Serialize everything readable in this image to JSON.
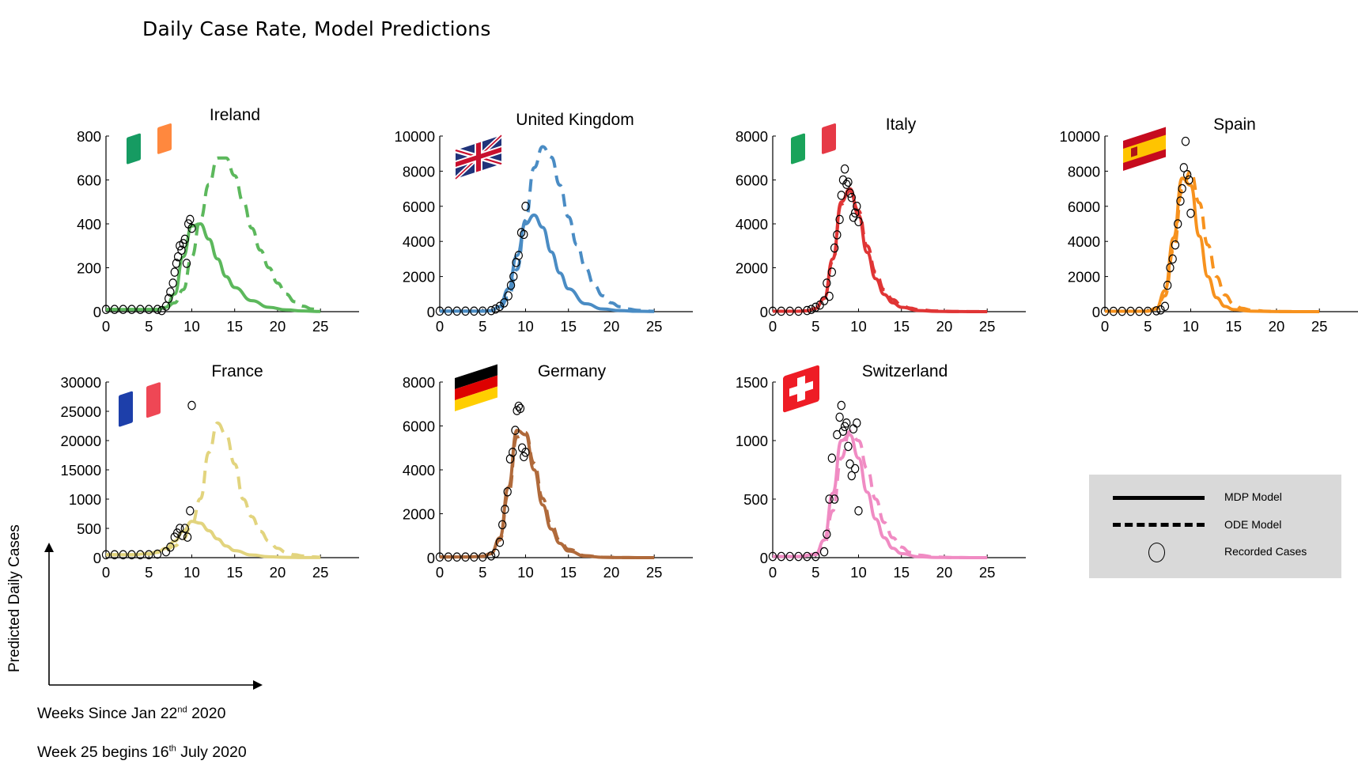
{
  "page_title": "Daily Case Rate, Model Predictions",
  "legend": {
    "mdp_label": "MDP Model",
    "ode_label": "ODE Model",
    "recorded_label": "Recorded Cases"
  },
  "axis_note": {
    "y_label": "Predicted Daily Cases",
    "x_label_prefix": "Weeks Since Jan 22",
    "x_label_sup": "nd",
    "x_label_suffix": " 2020",
    "week_note_prefix": "Week 25 begins 16",
    "week_note_sup": "th",
    "week_note_suffix": " July 2020"
  },
  "chart_data": [
    {
      "type": "line",
      "title": "Ireland",
      "flag": "ireland-flag",
      "color": "#5cb85c",
      "xlim": [
        0,
        30
      ],
      "ylim": [
        0,
        800
      ],
      "xticks": [
        "0",
        "5",
        "10",
        "15",
        "20",
        "25"
      ],
      "yticks": [
        "0",
        "200",
        "400",
        "600",
        "800"
      ],
      "series": [
        {
          "style": "solid",
          "x": [
            0,
            2,
            4,
            6,
            7,
            8,
            9,
            10,
            11,
            12,
            13,
            14,
            15,
            17,
            19,
            21,
            23,
            25
          ],
          "values": [
            10,
            10,
            10,
            10,
            20,
            80,
            250,
            390,
            400,
            330,
            240,
            160,
            110,
            50,
            20,
            8,
            3,
            1
          ]
        },
        {
          "style": "dashed",
          "x": [
            0,
            4,
            6,
            7,
            8,
            9,
            10,
            11,
            12,
            13,
            14,
            15,
            16,
            17,
            18,
            19,
            20,
            21,
            22,
            23,
            24,
            25
          ],
          "values": [
            10,
            10,
            10,
            20,
            40,
            100,
            250,
            420,
            580,
            700,
            700,
            620,
            500,
            380,
            280,
            200,
            130,
            80,
            45,
            25,
            12,
            5
          ]
        },
        {
          "style": "markers",
          "x": [
            0,
            1,
            2,
            3,
            4,
            5,
            6,
            6.5,
            7,
            7.3,
            7.5,
            7.8,
            8,
            8.2,
            8.4,
            8.6,
            8.8,
            9,
            9.2,
            9.4,
            9.6,
            9.8,
            10
          ],
          "values": [
            10,
            10,
            10,
            10,
            10,
            10,
            10,
            5,
            25,
            60,
            90,
            130,
            180,
            220,
            250,
            300,
            280,
            310,
            330,
            220,
            400,
            420,
            380
          ]
        }
      ]
    },
    {
      "type": "line",
      "title": "United Kingdom",
      "flag": "united-kingdom-flag",
      "color": "#4a8cc4",
      "xlim": [
        0,
        30
      ],
      "ylim": [
        0,
        10000
      ],
      "xticks": [
        "0",
        "5",
        "10",
        "15",
        "20",
        "25"
      ],
      "yticks": [
        "0",
        "2000",
        "4000",
        "6000",
        "8000",
        "10000"
      ],
      "series": [
        {
          "style": "solid",
          "x": [
            0,
            3,
            5,
            6,
            7,
            8,
            9,
            10,
            11,
            12,
            13,
            14,
            15,
            17,
            19,
            21,
            23,
            25
          ],
          "values": [
            30,
            30,
            30,
            60,
            300,
            1300,
            3200,
            5000,
            5500,
            4800,
            3400,
            2200,
            1300,
            450,
            150,
            60,
            20,
            10
          ]
        },
        {
          "style": "dashed",
          "x": [
            0,
            3,
            5,
            6,
            7,
            8,
            9,
            10,
            11,
            12,
            13,
            14,
            15,
            16,
            17,
            18,
            19,
            20,
            21,
            22,
            23,
            24,
            25
          ],
          "values": [
            30,
            30,
            30,
            50,
            200,
            800,
            2400,
            5200,
            8200,
            9400,
            8800,
            7200,
            5400,
            3800,
            2500,
            1500,
            900,
            500,
            280,
            150,
            80,
            40,
            20
          ]
        },
        {
          "style": "markers",
          "x": [
            0,
            1,
            2,
            3,
            4,
            5,
            6,
            6.5,
            7,
            7.5,
            8,
            8.3,
            8.6,
            8.9,
            9.2,
            9.5,
            9.8,
            10
          ],
          "values": [
            30,
            30,
            30,
            30,
            30,
            30,
            60,
            150,
            300,
            500,
            900,
            1500,
            2000,
            2800,
            3200,
            4500,
            4400,
            6000
          ]
        }
      ]
    },
    {
      "type": "line",
      "title": "Italy",
      "flag": "italy-flag",
      "color": "#e03535",
      "xlim": [
        0,
        30
      ],
      "ylim": [
        0,
        8000
      ],
      "xticks": [
        "0",
        "5",
        "10",
        "15",
        "20",
        "25"
      ],
      "yticks": [
        "0",
        "2000",
        "4000",
        "6000",
        "8000"
      ],
      "series": [
        {
          "style": "solid",
          "x": [
            0,
            3,
            4,
            5,
            6,
            7,
            8,
            9,
            10,
            11,
            12,
            13,
            14,
            15,
            17,
            19,
            21,
            23,
            25
          ],
          "values": [
            20,
            20,
            40,
            150,
            600,
            2400,
            5000,
            5600,
            4400,
            2700,
            1500,
            780,
            400,
            200,
            50,
            15,
            5,
            2,
            1
          ]
        },
        {
          "style": "dashed",
          "x": [
            0,
            3,
            4,
            5,
            6,
            7,
            8,
            9,
            10,
            11,
            12,
            13,
            14,
            15,
            16,
            17,
            19,
            21,
            23,
            25
          ],
          "values": [
            20,
            20,
            40,
            150,
            600,
            2300,
            4900,
            5500,
            4600,
            3000,
            1800,
            1000,
            550,
            300,
            160,
            90,
            30,
            10,
            4,
            1
          ]
        },
        {
          "style": "markers",
          "x": [
            0,
            1,
            2,
            3,
            4,
            4.5,
            5,
            5.5,
            6,
            6.3,
            6.6,
            6.9,
            7.2,
            7.5,
            7.8,
            8,
            8.2,
            8.4,
            8.6,
            8.8,
            9,
            9.2,
            9.4,
            9.6,
            9.8,
            10
          ],
          "values": [
            20,
            20,
            20,
            20,
            50,
            100,
            200,
            300,
            500,
            1300,
            700,
            1800,
            2900,
            3500,
            4200,
            5300,
            6000,
            6500,
            5800,
            5900,
            5400,
            5200,
            4300,
            4500,
            4800,
            4100
          ]
        }
      ]
    },
    {
      "type": "line",
      "title": "Spain",
      "flag": "spain-flag",
      "color": "#f7921e",
      "xlim": [
        0,
        30
      ],
      "ylim": [
        0,
        10000
      ],
      "xticks": [
        "0",
        "5",
        "10",
        "15",
        "20",
        "25"
      ],
      "yticks": [
        "0",
        "2000",
        "4000",
        "6000",
        "8000",
        "10000"
      ],
      "series": [
        {
          "style": "solid",
          "x": [
            0,
            3,
            5,
            6,
            7,
            8,
            9,
            10,
            11,
            12,
            13,
            14,
            15,
            17,
            19,
            21,
            23,
            25
          ],
          "values": [
            20,
            20,
            30,
            200,
            1200,
            4200,
            7600,
            7200,
            4300,
            2000,
            800,
            300,
            120,
            30,
            10,
            3,
            1,
            0
          ]
        },
        {
          "style": "dashed",
          "x": [
            0,
            3,
            5,
            6,
            7,
            8,
            9,
            10,
            11,
            12,
            13,
            14,
            15,
            16,
            17,
            19,
            21,
            23,
            25
          ],
          "values": [
            20,
            20,
            30,
            150,
            900,
            3500,
            6900,
            8000,
            6200,
            3800,
            2000,
            950,
            430,
            190,
            90,
            20,
            5,
            2,
            0
          ]
        },
        {
          "style": "markers",
          "x": [
            0,
            1,
            2,
            3,
            4,
            5,
            6,
            6.5,
            7,
            7.3,
            7.6,
            7.9,
            8.2,
            8.5,
            8.8,
            9,
            9.2,
            9.4,
            9.6,
            9.8,
            10
          ],
          "values": [
            20,
            20,
            20,
            20,
            20,
            20,
            50,
            100,
            300,
            1500,
            2500,
            3000,
            3800,
            5000,
            6300,
            7000,
            8200,
            9700,
            7800,
            7500,
            5600
          ]
        }
      ]
    },
    {
      "type": "line",
      "title": "France",
      "flag": "france-flag",
      "color": "#e2d47e",
      "xlim": [
        0,
        30
      ],
      "yticks": [
        "0",
        "500",
        "1000",
        "15000",
        "20000",
        "25000",
        "30000"
      ],
      "series": [
        {
          "style": "solid",
          "x": [
            0,
            3,
            5,
            6,
            7,
            8,
            9,
            10,
            11,
            12,
            13,
            14,
            15,
            17,
            19,
            21,
            23,
            25
          ],
          "values": [
            50,
            50,
            70,
            100,
            160,
            280,
            450,
            620,
            590,
            460,
            320,
            200,
            120,
            45,
            15,
            5,
            2,
            1
          ]
        },
        {
          "style": "dashed",
          "x": [
            0,
            3,
            5,
            6,
            7,
            8,
            9,
            10,
            11,
            12,
            13,
            14,
            15,
            16,
            17,
            18,
            19,
            20,
            21,
            22,
            23,
            24,
            25
          ],
          "values": [
            50,
            50,
            60,
            90,
            130,
            200,
            320,
            560,
            1200,
            18000,
            23000,
            21000,
            16000,
            1000,
            700,
            450,
            280,
            160,
            90,
            50,
            28,
            15,
            8
          ]
        },
        {
          "style": "markers",
          "x": [
            0,
            1,
            2,
            3,
            4,
            5,
            6,
            7,
            7.5,
            8,
            8.3,
            8.6,
            8.9,
            9.2,
            9.5,
            9.8,
            10
          ],
          "values": [
            50,
            50,
            50,
            50,
            50,
            50,
            60,
            100,
            180,
            350,
            420,
            500,
            380,
            500,
            350,
            800,
            26000
          ]
        }
      ]
    },
    {
      "type": "line",
      "title": "Germany",
      "flag": "germany-flag",
      "color": "#b06a3b",
      "xlim": [
        0,
        30
      ],
      "ylim": [
        0,
        8000
      ],
      "xticks": [
        "0",
        "5",
        "10",
        "15",
        "20",
        "25"
      ],
      "yticks": [
        "0",
        "2000",
        "4000",
        "6000",
        "8000"
      ],
      "series": [
        {
          "style": "solid",
          "x": [
            0,
            3,
            5,
            6,
            7,
            8,
            9,
            10,
            11,
            12,
            13,
            14,
            15,
            17,
            19,
            21,
            23,
            25
          ],
          "values": [
            30,
            30,
            60,
            200,
            900,
            3200,
            5800,
            5600,
            4000,
            2400,
            1300,
            650,
            300,
            70,
            15,
            4,
            1,
            0
          ]
        },
        {
          "style": "dashed",
          "x": [
            0,
            3,
            5,
            6,
            7,
            8,
            9,
            10,
            11,
            12,
            13,
            14,
            15,
            17,
            19,
            21,
            23,
            25
          ],
          "values": [
            30,
            30,
            60,
            180,
            800,
            2900,
            5500,
            5700,
            4300,
            2700,
            1500,
            780,
            380,
            90,
            20,
            5,
            1,
            0
          ]
        },
        {
          "style": "markers",
          "x": [
            0,
            1,
            2,
            3,
            4,
            5,
            6,
            6.5,
            7,
            7.3,
            7.6,
            7.9,
            8.2,
            8.5,
            8.8,
            9,
            9.2,
            9.4,
            9.6,
            9.8,
            10
          ],
          "values": [
            30,
            30,
            30,
            30,
            30,
            30,
            80,
            200,
            700,
            1500,
            2200,
            3000,
            4500,
            4800,
            5800,
            6700,
            6900,
            6800,
            5000,
            4600,
            4800
          ]
        }
      ]
    },
    {
      "type": "line",
      "title": "Switzerland",
      "flag": "switzerland-flag",
      "color": "#f08bc3",
      "xlim": [
        0,
        30
      ],
      "ylim": [
        0,
        1500
      ],
      "xticks": [
        "0",
        "5",
        "10",
        "15",
        "20",
        "25"
      ],
      "yticks": [
        "0",
        "500",
        "1000",
        "1500"
      ],
      "series": [
        {
          "style": "solid",
          "x": [
            0,
            3,
            5,
            6,
            7,
            8,
            9,
            10,
            11,
            12,
            13,
            14,
            15,
            17,
            19,
            21,
            23,
            25
          ],
          "values": [
            10,
            10,
            30,
            150,
            550,
            1000,
            1050,
            850,
            560,
            330,
            170,
            80,
            35,
            8,
            2,
            1,
            0,
            0
          ]
        },
        {
          "style": "dashed",
          "x": [
            0,
            3,
            5,
            6,
            7,
            8,
            9,
            10,
            11,
            12,
            13,
            14,
            15,
            16,
            17,
            19,
            21,
            23,
            25
          ],
          "values": [
            10,
            10,
            25,
            110,
            400,
            850,
            1080,
            1000,
            760,
            500,
            300,
            170,
            90,
            45,
            22,
            5,
            1,
            0,
            0
          ]
        },
        {
          "style": "markers",
          "x": [
            0,
            1,
            2,
            3,
            4,
            5,
            6,
            6.3,
            6.6,
            6.9,
            7.2,
            7.5,
            7.8,
            8,
            8.2,
            8.4,
            8.6,
            8.8,
            9,
            9.2,
            9.4,
            9.6,
            9.8,
            10
          ],
          "values": [
            10,
            10,
            10,
            10,
            10,
            10,
            50,
            200,
            500,
            850,
            500,
            1050,
            1200,
            1300,
            1080,
            1120,
            1150,
            950,
            800,
            700,
            1100,
            760,
            1150,
            400
          ]
        }
      ]
    }
  ]
}
